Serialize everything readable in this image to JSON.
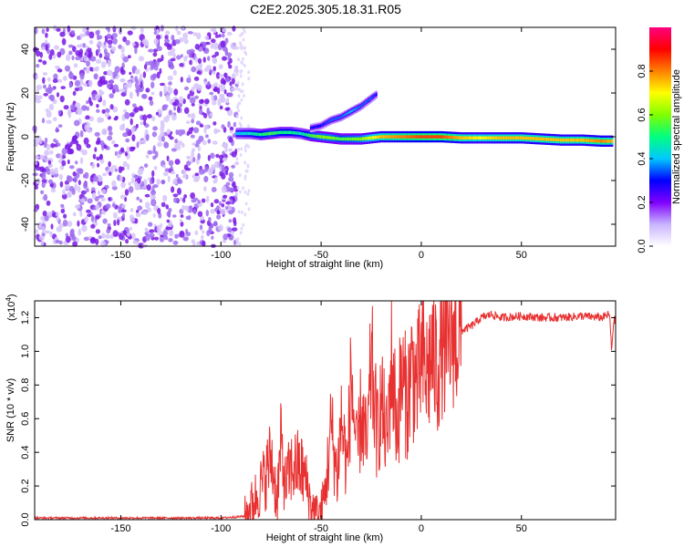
{
  "title": "C2E2.2025.305.18.31.R05",
  "chart_data": [
    {
      "type": "heatmap",
      "title": "C2E2.2025.305.18.31.R05",
      "xlabel": "Height of straight line (km)",
      "ylabel": "Frequency (Hz)",
      "xlim": [
        -193,
        97
      ],
      "ylim": [
        -50,
        50
      ],
      "x_ticks": [
        -150,
        -100,
        -50,
        0,
        50
      ],
      "y_ticks": [
        -40,
        -20,
        0,
        20,
        40
      ],
      "colorbar": {
        "label": "Normalized spectral amplitude",
        "range": [
          0.0,
          1.0
        ],
        "ticks": [
          0.0,
          0.2,
          0.4,
          0.6,
          0.8
        ],
        "tick_labels": [
          "0.0",
          "0.2",
          "0.4",
          "0.6",
          "0.8"
        ],
        "colormap": [
          "#ffffff",
          "#c8b4ff",
          "#7f00ff",
          "#0000ff",
          "#00c8ff",
          "#00ff80",
          "#80ff00",
          "#ffff00",
          "#ff8000",
          "#ff0000",
          "#ff0080"
        ]
      },
      "noise_region": {
        "x_range": [
          -193,
          -92
        ],
        "freq_range": [
          -50,
          50
        ],
        "amplitude": 0.1
      },
      "signal_band": [
        {
          "x": -92,
          "freq": 1.5,
          "amp": 0.4
        },
        {
          "x": -85,
          "freq": 1.5,
          "amp": 0.45
        },
        {
          "x": -80,
          "freq": 1.0,
          "amp": 0.5
        },
        {
          "x": -75,
          "freq": 1.5,
          "amp": 0.55
        },
        {
          "x": -70,
          "freq": 2.0,
          "amp": 0.5
        },
        {
          "x": -65,
          "freq": 2.0,
          "amp": 0.5
        },
        {
          "x": -60,
          "freq": 1.5,
          "amp": 0.45
        },
        {
          "x": -55,
          "freq": 0.5,
          "amp": 0.55
        },
        {
          "x": -50,
          "freq": 0.0,
          "amp": 0.6
        },
        {
          "x": -45,
          "freq": -0.5,
          "amp": 0.6
        },
        {
          "x": -40,
          "freq": -1.0,
          "amp": 0.55
        },
        {
          "x": -30,
          "freq": -1.0,
          "amp": 0.6
        },
        {
          "x": -20,
          "freq": 0.0,
          "amp": 0.75
        },
        {
          "x": -10,
          "freq": 0.0,
          "amp": 0.8
        },
        {
          "x": 0,
          "freq": 0.0,
          "amp": 0.85
        },
        {
          "x": 10,
          "freq": 0.0,
          "amp": 0.85
        },
        {
          "x": 20,
          "freq": -0.5,
          "amp": 0.75
        },
        {
          "x": 30,
          "freq": -0.5,
          "amp": 0.7
        },
        {
          "x": 40,
          "freq": -0.5,
          "amp": 0.75
        },
        {
          "x": 50,
          "freq": -0.5,
          "amp": 0.75
        },
        {
          "x": 60,
          "freq": -1.0,
          "amp": 0.75
        },
        {
          "x": 70,
          "freq": -1.5,
          "amp": 0.75
        },
        {
          "x": 80,
          "freq": -1.5,
          "amp": 0.75
        },
        {
          "x": 90,
          "freq": -2.0,
          "amp": 0.8
        },
        {
          "x": 96,
          "freq": -2.0,
          "amp": 0.75
        }
      ],
      "branch": [
        {
          "x": -55,
          "freq": 4.0,
          "amp": 0.3
        },
        {
          "x": -50,
          "freq": 5.0,
          "amp": 0.3
        },
        {
          "x": -45,
          "freq": 7.5,
          "amp": 0.35
        },
        {
          "x": -40,
          "freq": 9.0,
          "amp": 0.35
        },
        {
          "x": -35,
          "freq": 11.5,
          "amp": 0.4
        },
        {
          "x": -30,
          "freq": 14.0,
          "amp": 0.35
        },
        {
          "x": -25,
          "freq": 17.5,
          "amp": 0.35
        },
        {
          "x": -22,
          "freq": 19.5,
          "amp": 0.3
        }
      ]
    },
    {
      "type": "line",
      "title": "",
      "xlabel": "Height of straight line (km)",
      "ylabel": "SNR (10 * v/v)",
      "y_multiplier": "(x10",
      "y_multiplier_exp": "4",
      "xlim": [
        -193,
        97
      ],
      "ylim": [
        0,
        1.3
      ],
      "x_ticks": [
        -150,
        -100,
        -50,
        0,
        50
      ],
      "y_ticks": [
        0.0,
        0.2,
        0.4,
        0.6,
        0.8,
        1.0,
        1.2
      ],
      "y_tick_labels": [
        "0.0",
        "0.2",
        "0.4",
        "0.6",
        "0.8",
        "1.0",
        "1.2"
      ],
      "series": [
        {
          "color": "#e83030",
          "x": [
            -193,
            -150,
            -100,
            -88,
            -85,
            -82,
            -78,
            -75,
            -72,
            -70,
            -68,
            -65,
            -62,
            -60,
            -58,
            -55,
            -52,
            -50,
            -48,
            -45,
            -42,
            -40,
            -37,
            -35,
            -32,
            -30,
            -27,
            -25,
            -22,
            -20,
            -17,
            -15,
            -12,
            -10,
            -7,
            -5,
            -2,
            0,
            3,
            5,
            8,
            10,
            13,
            15,
            18,
            20,
            25,
            28,
            30,
            35,
            40,
            50,
            60,
            70,
            80,
            90,
            94,
            95,
            96,
            97
          ],
          "y": [
            0.01,
            0.01,
            0.01,
            0.02,
            0.08,
            0.15,
            0.25,
            0.38,
            0.12,
            0.45,
            0.2,
            0.3,
            0.32,
            0.3,
            0.25,
            0.08,
            0.03,
            0.05,
            0.15,
            0.55,
            0.25,
            0.6,
            0.3,
            0.85,
            0.35,
            0.65,
            0.4,
            0.95,
            0.5,
            0.7,
            0.45,
            0.95,
            0.55,
            0.85,
            0.7,
            0.9,
            0.8,
            0.95,
            0.85,
            1.0,
            0.9,
            1.05,
            1.0,
            1.1,
            1.08,
            1.12,
            1.15,
            1.18,
            1.2,
            1.22,
            1.2,
            1.21,
            1.2,
            1.2,
            1.21,
            1.2,
            1.22,
            1.0,
            1.18,
            1.19
          ]
        }
      ]
    }
  ]
}
